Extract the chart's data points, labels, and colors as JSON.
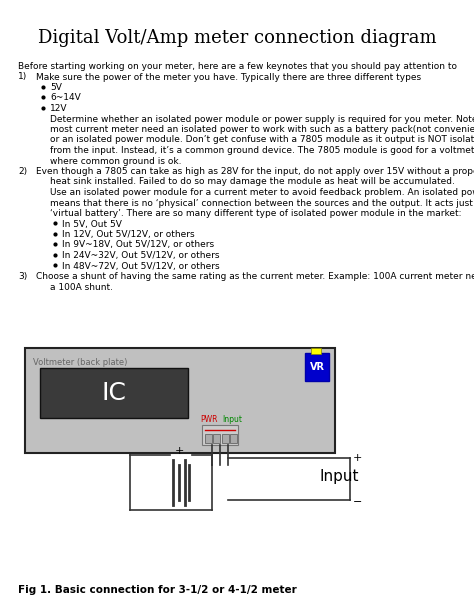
{
  "title": "Digital Volt/Amp meter connection diagram",
  "title_fontsize": 13,
  "body_fontsize": 6.5,
  "fig_caption": "Fig 1. Basic connection for 3-1/2 or 4-1/2 meter",
  "bg_color": "#ffffff",
  "diagram_bg": "#c0c0c0",
  "ic_box_color": "#3a3a3a",
  "vr_box_color": "#0000cc",
  "connector_box_color": "#d8d8d8",
  "wire_color": "#333333",
  "text_color": "#000000",
  "pwr_color": "#cc0000",
  "input_label_color": "#008800",
  "lines": [
    {
      "text": "Before starting working on your meter, here are a few keynotes that you should pay attention to",
      "x": 18,
      "indent": 0,
      "bullet": false
    },
    {
      "text": "1)",
      "x": 18,
      "indent": 0,
      "bullet": false,
      "inline": "Make sure the power of the meter you have. Typically there are three different types"
    },
    {
      "text": "5V",
      "x": 50,
      "indent": 1,
      "bullet": true
    },
    {
      "text": "6~14V",
      "x": 50,
      "indent": 1,
      "bullet": true
    },
    {
      "text": "12V",
      "x": 50,
      "indent": 1,
      "bullet": true
    },
    {
      "text": "Determine whether an isolated power module or power supply is required for you meter. Note,",
      "x": 50,
      "indent": 1,
      "bullet": false
    },
    {
      "text": "most current meter need an isolated power to work with such as a battery pack(not convenience)",
      "x": 50,
      "indent": 1,
      "bullet": false
    },
    {
      "text": "or an isolated power module. Don’t get confuse with a 7805 module as it output is NOT isolated",
      "x": 50,
      "indent": 1,
      "bullet": false
    },
    {
      "text": "from the input. Instead, it’s a common ground device. The 7805 module is good for a voltmeter",
      "x": 50,
      "indent": 1,
      "bullet": false
    },
    {
      "text": "where common ground is ok.",
      "x": 50,
      "indent": 1,
      "bullet": false
    },
    {
      "text": "2)",
      "x": 18,
      "indent": 0,
      "bullet": false,
      "inline": "Even though a 7805 can take as high as 28V for the input, do not apply over 15V without a proper"
    },
    {
      "text": "heat sink installed. Failed to do so may damage the module as heat will be accumulated.",
      "x": 50,
      "indent": 1,
      "bullet": false
    },
    {
      "text": "Use an isolated power module for a current meter to avoid feedback problem. An isolated power",
      "x": 50,
      "indent": 1,
      "bullet": false
    },
    {
      "text": "means that there is no ‘physical’ connection between the sources and the output. It acts just like a",
      "x": 50,
      "indent": 1,
      "bullet": false
    },
    {
      "text": "‘virtual battery’. There are so many different type of isolated power module in the market:",
      "x": 50,
      "indent": 1,
      "bullet": false
    },
    {
      "text": "In 5V, Out 5V",
      "x": 62,
      "indent": 2,
      "bullet": true
    },
    {
      "text": "In 12V, Out 5V/12V, or others",
      "x": 62,
      "indent": 2,
      "bullet": true
    },
    {
      "text": "In 9V~18V, Out 5V/12V, or others",
      "x": 62,
      "indent": 2,
      "bullet": true
    },
    {
      "text": "In 24V~32V, Out 5V/12V, or others",
      "x": 62,
      "indent": 2,
      "bullet": true
    },
    {
      "text": "In 48V~72V, Out 5V/12V, or others",
      "x": 62,
      "indent": 2,
      "bullet": true
    },
    {
      "text": "3)",
      "x": 18,
      "indent": 0,
      "bullet": false,
      "inline": "Choose a shunt of having the same rating as the current meter. Example: 100A current meter need"
    },
    {
      "text": "a 100A shunt.",
      "x": 50,
      "indent": 1,
      "bullet": false
    }
  ]
}
